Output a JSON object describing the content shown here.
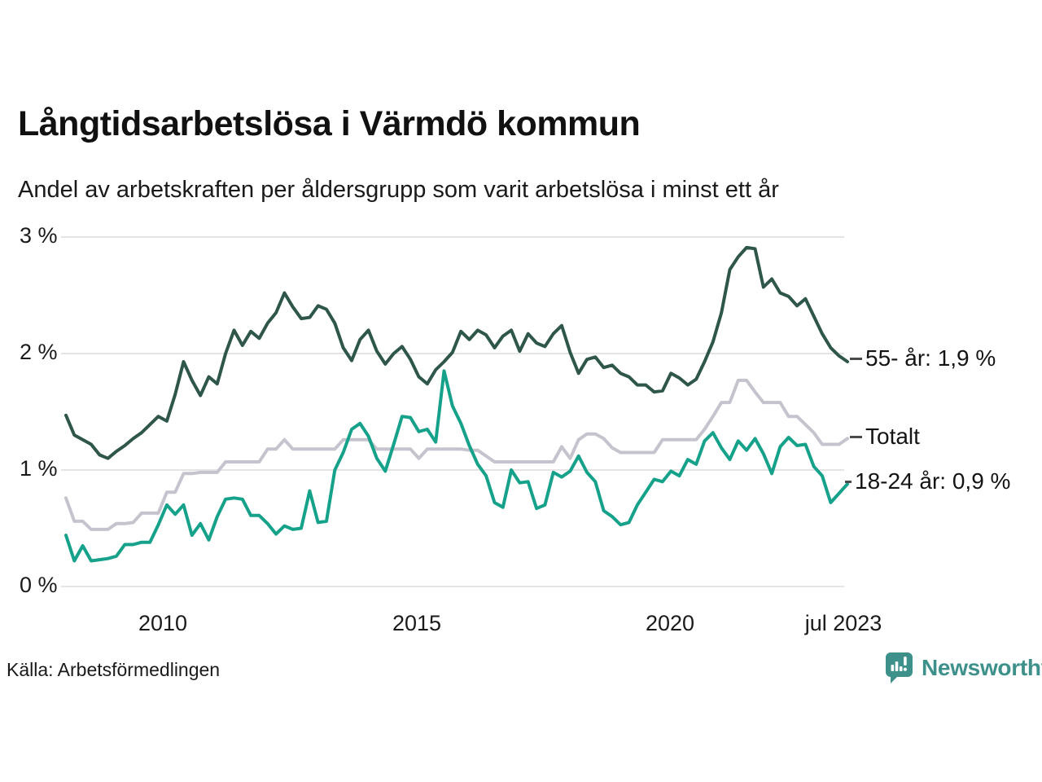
{
  "title": "Långtidsarbetslösa i Värmdö kommun",
  "subtitle": "Andel av arbetskraften per åldersgrupp som varit arbetslösa i minst ett år",
  "source": "Källa: Arbetsförmedlingen",
  "branding": {
    "name": "Newsworthy",
    "brand_color": "#3e918b",
    "icon": "newsworthy-speech-bubble-bar-chart-icon"
  },
  "chart_data": {
    "type": "line",
    "title": "Långtidsarbetslösa i Värmdö kommun",
    "subtitle": "Andel av arbetskraften per åldersgrupp som varit arbetslösa i minst ett år",
    "x_start": "2008-02",
    "x_end": "2023-07",
    "x_interval_months": 2,
    "xticks": [
      "2010",
      "2015",
      "2020",
      "jul 2023"
    ],
    "yticks": [
      "0 %",
      "1 %",
      "2 %",
      "3 %"
    ],
    "ylim": [
      0,
      3.15
    ],
    "unit": "%",
    "grid": "horizontal",
    "gridline_color": "#e4e4e4",
    "legend_position": "right-of-line-ends",
    "series": [
      {
        "name": "55- år",
        "label": "55- år: 1,9 %",
        "last_value": 1.9,
        "color": "#2e564b",
        "values": [
          1.47,
          1.3,
          1.26,
          1.22,
          1.13,
          1.1,
          1.16,
          1.21,
          1.27,
          1.32,
          1.39,
          1.46,
          1.42,
          1.65,
          1.93,
          1.77,
          1.64,
          1.8,
          1.74,
          2.0,
          2.2,
          2.07,
          2.19,
          2.13,
          2.26,
          2.35,
          2.52,
          2.4,
          2.3,
          2.31,
          2.41,
          2.38,
          2.26,
          2.05,
          1.94,
          2.12,
          2.2,
          2.02,
          1.91,
          2.0,
          2.06,
          1.95,
          1.8,
          1.74,
          1.86,
          1.93,
          2.01,
          2.19,
          2.12,
          2.2,
          2.16,
          2.05,
          2.15,
          2.2,
          2.02,
          2.17,
          2.09,
          2.06,
          2.17,
          2.24,
          2.01,
          1.83,
          1.95,
          1.97,
          1.88,
          1.9,
          1.83,
          1.8,
          1.73,
          1.73,
          1.67,
          1.68,
          1.83,
          1.79,
          1.73,
          1.78,
          1.93,
          2.1,
          2.35,
          2.72,
          2.83,
          2.91,
          2.9,
          2.57,
          2.64,
          2.52,
          2.49,
          2.41,
          2.47,
          2.32,
          2.17,
          2.05,
          1.98,
          1.93
        ]
      },
      {
        "name": "Totalt",
        "label": "Totalt",
        "last_value": 1.3,
        "color": "#c5c3cd",
        "values": [
          0.76,
          0.56,
          0.56,
          0.49,
          0.49,
          0.49,
          0.54,
          0.54,
          0.55,
          0.63,
          0.63,
          0.63,
          0.81,
          0.81,
          0.97,
          0.97,
          0.98,
          0.98,
          0.98,
          1.07,
          1.07,
          1.07,
          1.07,
          1.07,
          1.18,
          1.18,
          1.26,
          1.18,
          1.18,
          1.18,
          1.18,
          1.18,
          1.18,
          1.26,
          1.26,
          1.26,
          1.26,
          1.18,
          1.18,
          1.18,
          1.18,
          1.18,
          1.1,
          1.18,
          1.18,
          1.18,
          1.18,
          1.18,
          1.17,
          1.17,
          1.12,
          1.07,
          1.07,
          1.07,
          1.07,
          1.07,
          1.07,
          1.07,
          1.07,
          1.2,
          1.1,
          1.26,
          1.31,
          1.31,
          1.27,
          1.19,
          1.15,
          1.15,
          1.15,
          1.15,
          1.15,
          1.26,
          1.26,
          1.26,
          1.26,
          1.26,
          1.35,
          1.46,
          1.58,
          1.58,
          1.77,
          1.77,
          1.67,
          1.58,
          1.58,
          1.58,
          1.46,
          1.46,
          1.39,
          1.32,
          1.22,
          1.22,
          1.22,
          1.27
        ]
      },
      {
        "name": "18-24 år",
        "label": "18-24 år: 0,9 %",
        "last_value": 0.9,
        "color": "#16a28a",
        "values": [
          0.44,
          0.22,
          0.35,
          0.22,
          0.23,
          0.24,
          0.26,
          0.36,
          0.36,
          0.38,
          0.38,
          0.53,
          0.7,
          0.62,
          0.7,
          0.44,
          0.54,
          0.4,
          0.6,
          0.75,
          0.76,
          0.75,
          0.61,
          0.61,
          0.54,
          0.45,
          0.52,
          0.49,
          0.5,
          0.82,
          0.55,
          0.56,
          1.0,
          1.15,
          1.35,
          1.4,
          1.29,
          1.1,
          0.99,
          1.22,
          1.46,
          1.45,
          1.33,
          1.35,
          1.24,
          1.85,
          1.55,
          1.4,
          1.21,
          1.05,
          0.95,
          0.72,
          0.68,
          1.0,
          0.89,
          0.9,
          0.67,
          0.7,
          0.98,
          0.94,
          0.99,
          1.12,
          0.98,
          0.9,
          0.65,
          0.6,
          0.53,
          0.55,
          0.7,
          0.81,
          0.92,
          0.9,
          0.99,
          0.95,
          1.09,
          1.05,
          1.25,
          1.32,
          1.19,
          1.09,
          1.25,
          1.17,
          1.27,
          1.14,
          0.97,
          1.2,
          1.28,
          1.21,
          1.22,
          1.03,
          0.95,
          0.72,
          0.8,
          0.88
        ]
      }
    ]
  }
}
